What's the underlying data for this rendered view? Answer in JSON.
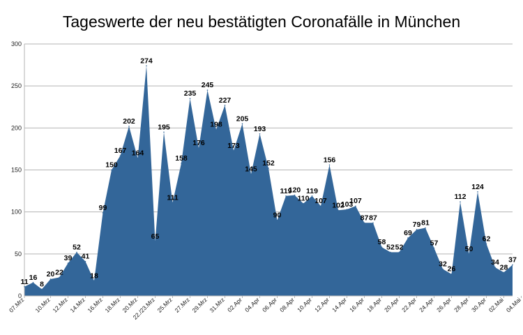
{
  "chart_data": {
    "type": "area",
    "title": "Tageswerte der neu bestätigten Coronafälle in München",
    "xlabel": "",
    "ylabel": "",
    "ylim": [
      0,
      300
    ],
    "yticks": [
      0,
      50,
      100,
      150,
      200,
      250,
      300
    ],
    "grid": "horizontal",
    "legend": "none",
    "color": "#336699",
    "tick_labels": [
      "07.Mrz",
      "10.Mrz",
      "12.Mrz",
      "14.Mrz",
      "16.Mrz",
      "18.Mrz",
      "20.Mrz",
      "22./23.Mrz",
      "25.Mrz",
      "27.Mrz",
      "29.Mrz",
      "31.Mrz",
      "02.Apr",
      "04.Apr",
      "06.Apr",
      "08.Apr",
      "10.Apr",
      "12.Apr",
      "14.Apr",
      "16.Apr",
      "18.Apr",
      "20.Apr",
      "22.Apr",
      "24.Apr",
      "26.Apr",
      "28.Apr",
      "30.Apr",
      "02.Mai",
      "04.Mai"
    ],
    "tick_positions": [
      0,
      3,
      5,
      7,
      9,
      11,
      13,
      15,
      17,
      19,
      21,
      23,
      25,
      27,
      29,
      31,
      33,
      35,
      37,
      39,
      41,
      43,
      45,
      47,
      49,
      51,
      53,
      55,
      57
    ],
    "values": [
      11,
      16,
      8,
      20,
      22,
      39,
      52,
      41,
      18,
      99,
      150,
      167,
      202,
      164,
      274,
      65,
      195,
      111,
      158,
      235,
      176,
      245,
      198,
      227,
      173,
      205,
      145,
      193,
      152,
      90,
      119,
      120,
      110,
      119,
      107,
      156,
      102,
      103,
      107,
      87,
      87,
      58,
      52,
      52,
      69,
      79,
      81,
      57,
      32,
      26,
      112,
      50,
      124,
      62,
      34,
      28,
      37
    ],
    "label_offsets": [
      0,
      0,
      0,
      0,
      0,
      0,
      0,
      0,
      0,
      0,
      0,
      0,
      0,
      0,
      0,
      0,
      0,
      0,
      0,
      0,
      0,
      0,
      0,
      0,
      0,
      0,
      0,
      0,
      0,
      0,
      0,
      0,
      0,
      0,
      0,
      0,
      0,
      0,
      0,
      0,
      0,
      0,
      0,
      0,
      0,
      0,
      0,
      0,
      0,
      0,
      0,
      0,
      0,
      0,
      0,
      0,
      0
    ]
  }
}
